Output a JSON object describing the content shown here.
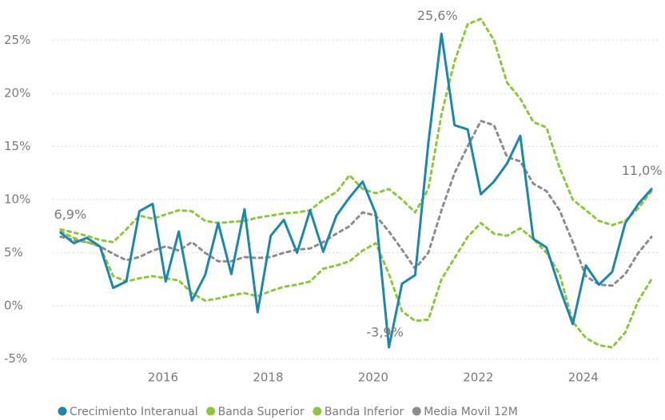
{
  "chart_data": {
    "type": "line",
    "x": [
      2014.05,
      2014.3,
      2014.55,
      2014.8,
      2015.05,
      2015.3,
      2015.55,
      2015.8,
      2016.05,
      2016.3,
      2016.55,
      2016.8,
      2017.05,
      2017.3,
      2017.55,
      2017.8,
      2018.05,
      2018.3,
      2018.55,
      2018.8,
      2019.05,
      2019.3,
      2019.55,
      2019.8,
      2020.05,
      2020.3,
      2020.55,
      2020.8,
      2021.05,
      2021.3,
      2021.55,
      2021.8,
      2022.05,
      2022.3,
      2022.55,
      2022.8,
      2023.05,
      2023.3,
      2023.55,
      2023.8,
      2024.05,
      2024.3,
      2024.55,
      2024.8,
      2025.05,
      2025.3
    ],
    "xlim": [
      2013.9,
      2025.45
    ],
    "xticks": [
      2016,
      2018,
      2020,
      2022,
      2024
    ],
    "ylim": [
      -6,
      27.5
    ],
    "yticks": [
      {
        "value": -5,
        "label": "-5%"
      },
      {
        "value": 0,
        "label": "0%"
      },
      {
        "value": 5,
        "label": "5%"
      },
      {
        "value": 10,
        "label": "10%"
      },
      {
        "value": 15,
        "label": "15%"
      },
      {
        "value": 20,
        "label": "20%"
      },
      {
        "value": 25,
        "label": "25%"
      }
    ],
    "grid": true,
    "legend": "bottom",
    "series": [
      {
        "name": "Crecimiento Interanual",
        "color": "#1f86ab",
        "style": "solid",
        "values": [
          6.9,
          5.9,
          6.4,
          5.6,
          1.7,
          2.3,
          8.9,
          9.6,
          2.3,
          7.0,
          0.5,
          2.9,
          7.8,
          3.0,
          9.1,
          -0.6,
          6.6,
          8.1,
          5.0,
          9.0,
          5.1,
          8.5,
          10.2,
          11.7,
          8.7,
          -3.9,
          2.1,
          2.9,
          15.3,
          25.6,
          17.0,
          16.6,
          10.5,
          11.7,
          13.4,
          16.0,
          6.3,
          5.5,
          1.7,
          -1.7,
          3.8,
          2.0,
          3.2,
          7.8,
          9.6,
          11.0
        ],
        "value_labels": [
          "6,9%",
          null,
          null,
          null,
          null,
          null,
          null,
          null,
          null,
          null,
          null,
          null,
          null,
          null,
          null,
          null,
          null,
          null,
          null,
          null,
          null,
          null,
          null,
          null,
          null,
          "-3,9%",
          null,
          null,
          null,
          "25,6%",
          null,
          null,
          null,
          null,
          null,
          null,
          null,
          null,
          null,
          null,
          null,
          null,
          null,
          null,
          null,
          "11,0%"
        ]
      },
      {
        "name": "Banda Superior",
        "color": "#8cc63f",
        "style": "dotted",
        "values": [
          7.2,
          6.9,
          6.6,
          6.2,
          6.0,
          7.2,
          8.5,
          8.2,
          8.6,
          9.0,
          8.9,
          8.0,
          7.8,
          7.9,
          8.0,
          8.3,
          8.5,
          8.7,
          8.8,
          9.0,
          10.0,
          10.7,
          12.3,
          11.0,
          10.6,
          11.0,
          10.0,
          8.8,
          11.0,
          18.0,
          23.0,
          26.5,
          27.0,
          25.0,
          21.0,
          19.5,
          17.3,
          16.8,
          13.0,
          10.0,
          9.0,
          8.0,
          7.6,
          8.0,
          9.2,
          10.8
        ]
      },
      {
        "name": "Banda Inferior",
        "color": "#8cc63f",
        "style": "dotted",
        "values": [
          7.0,
          6.4,
          6.0,
          5.6,
          2.8,
          2.3,
          2.6,
          2.8,
          2.6,
          2.4,
          1.2,
          0.5,
          0.7,
          1.0,
          1.2,
          0.9,
          1.4,
          1.8,
          2.0,
          2.3,
          3.5,
          3.8,
          4.2,
          5.2,
          5.9,
          3.0,
          -0.5,
          -1.4,
          -1.3,
          2.5,
          4.5,
          6.5,
          7.8,
          6.8,
          6.6,
          7.3,
          6.3,
          5.0,
          3.0,
          -1.5,
          -3.0,
          -3.7,
          -3.9,
          -2.5,
          0.5,
          2.5
        ]
      },
      {
        "name": "Media Movil 12M",
        "color": "#8c8c8c",
        "style": "dotted",
        "values": [
          6.5,
          6.2,
          6.0,
          5.6,
          4.9,
          4.3,
          4.6,
          5.2,
          5.6,
          5.2,
          6.0,
          5.0,
          4.2,
          4.2,
          4.6,
          4.5,
          4.6,
          5.0,
          5.3,
          5.4,
          6.0,
          6.8,
          7.5,
          8.8,
          8.5,
          7.0,
          5.3,
          3.5,
          5.0,
          9.0,
          12.5,
          15.0,
          17.4,
          17.0,
          14.0,
          13.6,
          11.5,
          10.8,
          9.0,
          6.0,
          2.8,
          2.0,
          1.9,
          3.0,
          5.0,
          6.5
        ]
      }
    ]
  }
}
